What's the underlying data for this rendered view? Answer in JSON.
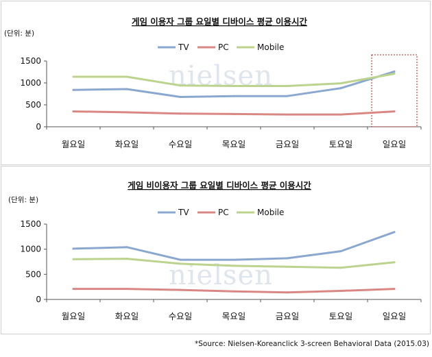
{
  "source_note": "*Source: Nielsen-Koreanclick 3-screen Behavioral Data (2015.03)",
  "watermark": "nielsen",
  "chart_data": [
    {
      "type": "line",
      "title": "게임 이용자 그룹 요일별 디바이스 평균 이용시간",
      "unit_label": "(단위: 분)",
      "categories": [
        "월요일",
        "화요일",
        "수요일",
        "목요일",
        "금요일",
        "토요일",
        "일요일"
      ],
      "ylim": [
        0,
        1500
      ],
      "yticks": [
        "0",
        "500",
        "1000",
        "1500"
      ],
      "grid": false,
      "legend_position": "top",
      "highlight_category": "일요일",
      "series": [
        {
          "name": "TV",
          "color": "#8aa8cf",
          "values": [
            840,
            860,
            680,
            700,
            700,
            880,
            1260
          ]
        },
        {
          "name": "PC",
          "color": "#d98783",
          "values": [
            350,
            330,
            300,
            290,
            280,
            280,
            350
          ]
        },
        {
          "name": "Mobile",
          "color": "#bcd38e",
          "values": [
            1140,
            1140,
            940,
            930,
            930,
            990,
            1210
          ]
        }
      ]
    },
    {
      "type": "line",
      "title": "게임 비이용자 그룹 요일별 디바이스 평균 이용시간",
      "unit_label": "(단위: 분)",
      "categories": [
        "월요일",
        "화요일",
        "수요일",
        "목요일",
        "금요일",
        "토요일",
        "일요일"
      ],
      "ylim": [
        0,
        1500
      ],
      "yticks": [
        "0",
        "500",
        "1000",
        "1500"
      ],
      "grid": false,
      "legend_position": "top",
      "series": [
        {
          "name": "TV",
          "color": "#8aa8cf",
          "values": [
            1010,
            1040,
            790,
            790,
            820,
            960,
            1340
          ]
        },
        {
          "name": "PC",
          "color": "#d98783",
          "values": [
            210,
            210,
            190,
            160,
            140,
            170,
            210
          ]
        },
        {
          "name": "Mobile",
          "color": "#bcd38e",
          "values": [
            800,
            810,
            710,
            670,
            650,
            630,
            740
          ]
        }
      ]
    }
  ]
}
